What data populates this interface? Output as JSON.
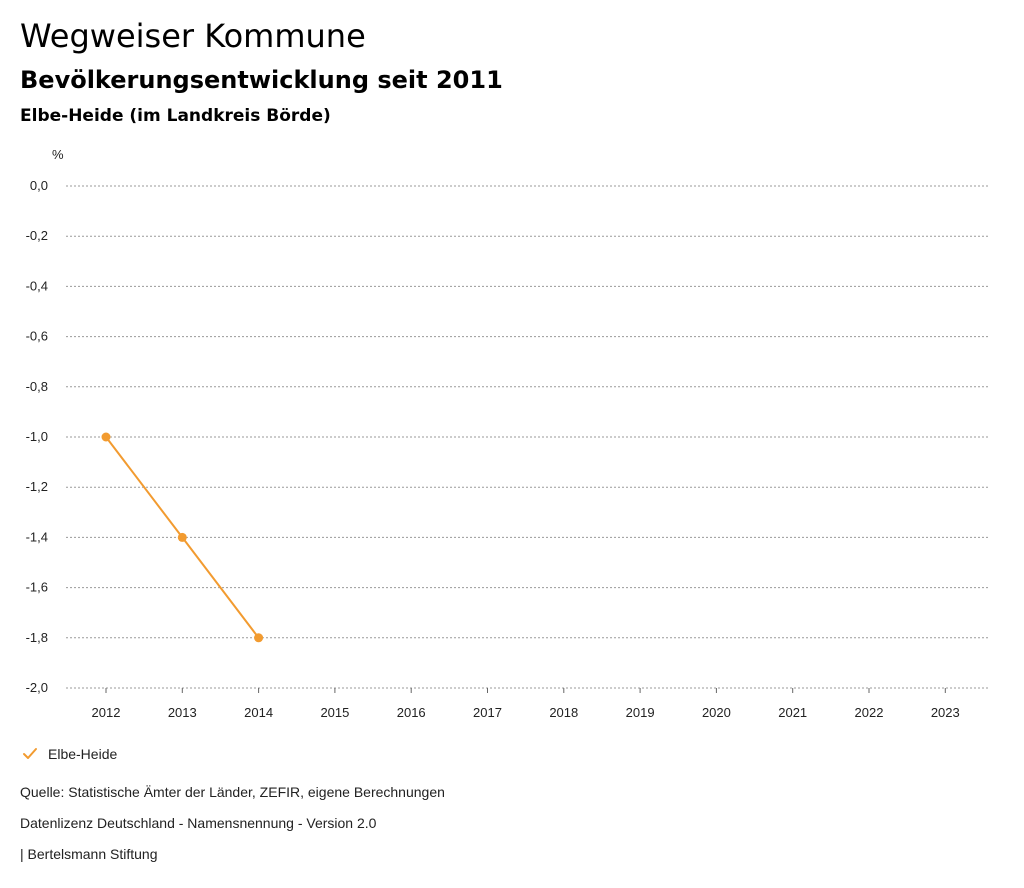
{
  "header": {
    "title": "Wegweiser Kommune",
    "subtitle": "Bevölkerungsentwicklung seit 2011",
    "region": "Elbe-Heide (im Landkreis Börde)"
  },
  "chart_data": {
    "type": "line",
    "title": "Bevölkerungsentwicklung seit 2011",
    "ylabel": "%",
    "xlabel": "",
    "categories": [
      "2012",
      "2013",
      "2014",
      "2015",
      "2016",
      "2017",
      "2018",
      "2019",
      "2020",
      "2021",
      "2022",
      "2023"
    ],
    "ylim": [
      -2.0,
      0.0
    ],
    "yticks": [
      0.0,
      -0.2,
      -0.4,
      -0.6,
      -0.8,
      -1.0,
      -1.2,
      -1.4,
      -1.6,
      -1.8,
      -2.0
    ],
    "ytick_labels": [
      "0,0",
      "-0,2",
      "-0,4",
      "-0,6",
      "-0,8",
      "-1,0",
      "-1,2",
      "-1,4",
      "-1,6",
      "-1,8",
      "-2,0"
    ],
    "grid": true,
    "series": [
      {
        "name": "Elbe-Heide",
        "color": "#f29b30",
        "values": [
          -1.0,
          -1.4,
          -1.8,
          null,
          null,
          null,
          null,
          null,
          null,
          null,
          null,
          null
        ]
      }
    ]
  },
  "legend": {
    "items": [
      {
        "label": "Elbe-Heide",
        "color": "#f29b30"
      }
    ]
  },
  "footer": {
    "source": "Quelle: Statistische Ämter der Länder, ZEFIR, eigene Berechnungen",
    "license": "Datenlizenz Deutschland - Namensnennung - Version 2.0",
    "publisher": "| Bertelsmann Stiftung"
  }
}
